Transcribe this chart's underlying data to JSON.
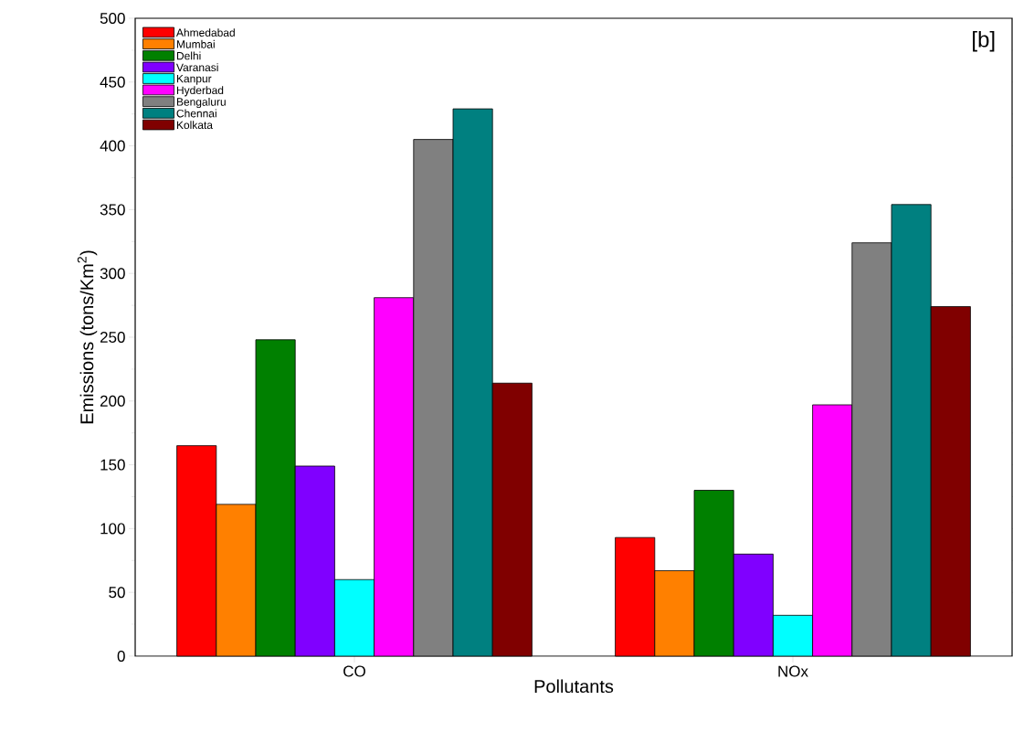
{
  "chart_data": {
    "type": "bar",
    "xlabel": "Pollutants",
    "ylabel": "Emissions (tons/Km$^{2}$)",
    "categories": [
      "CO",
      "NOx"
    ],
    "series": [
      {
        "name": "Ahmedabad",
        "color": "#ff0000",
        "values": [
          165,
          93
        ]
      },
      {
        "name": "Mumbai",
        "color": "#ff8000",
        "values": [
          119,
          67
        ]
      },
      {
        "name": "Delhi",
        "color": "#008000",
        "values": [
          248,
          130
        ]
      },
      {
        "name": "Varanasi",
        "color": "#8000ff",
        "values": [
          149,
          80
        ]
      },
      {
        "name": "Kanpur",
        "color": "#00ffff",
        "values": [
          60,
          32
        ]
      },
      {
        "name": "Hyderbad",
        "color": "#ff00ff",
        "values": [
          281,
          197
        ]
      },
      {
        "name": "Bengaluru",
        "color": "#808080",
        "values": [
          405,
          324
        ]
      },
      {
        "name": "Chennai",
        "color": "#008080",
        "values": [
          429,
          354
        ]
      },
      {
        "name": "Kolkata",
        "color": "#800000",
        "values": [
          214,
          274
        ]
      }
    ],
    "ylim": [
      0,
      500
    ],
    "yticks": [
      0,
      50,
      100,
      150,
      200,
      250,
      300,
      350,
      400,
      450,
      500
    ],
    "legend": "top left",
    "annotations": [
      "[b]"
    ]
  }
}
